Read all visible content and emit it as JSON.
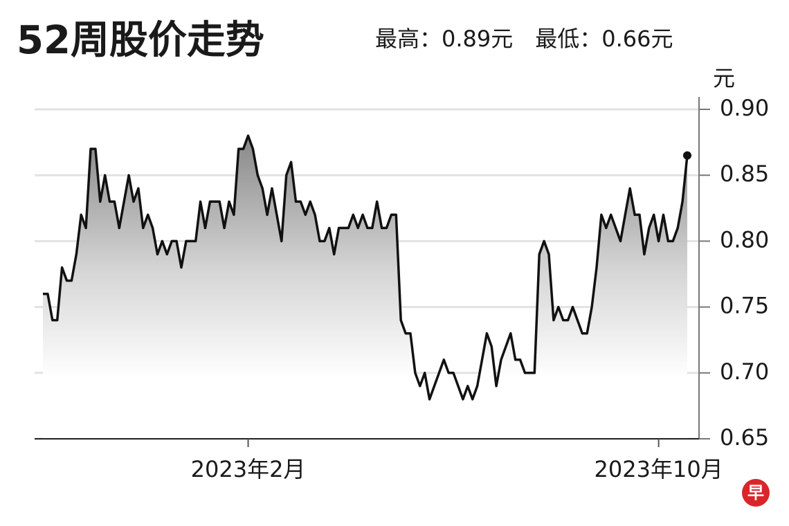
{
  "chart_data": {
    "type": "line",
    "title": "52周股价走势",
    "subtitle": "最高：0.89元　最低：0.66元",
    "y_label": "元",
    "logo": "早",
    "color": "#111111",
    "grid": true,
    "end_marker": true,
    "categories": [
      null,
      null,
      null,
      null,
      null,
      null,
      null,
      null,
      null,
      null,
      null,
      null,
      null,
      null,
      null,
      null,
      null,
      null,
      null,
      null,
      null,
      null,
      null,
      null,
      null,
      null,
      null,
      null,
      null,
      null,
      null,
      null,
      null,
      null,
      null,
      null,
      null,
      null,
      null,
      null,
      null,
      null,
      null,
      "2023年2月",
      null,
      null,
      null,
      null,
      null,
      null,
      null,
      null,
      null,
      null,
      null,
      null,
      null,
      null,
      null,
      null,
      null,
      null,
      null,
      null,
      null,
      null,
      null,
      null,
      null,
      null,
      null,
      null,
      null,
      null,
      null,
      null,
      null,
      null,
      null,
      null,
      null,
      null,
      null,
      null,
      null,
      null,
      null,
      null,
      null,
      null,
      null,
      null,
      null,
      null,
      null,
      null,
      null,
      null,
      null,
      null,
      null,
      null,
      null,
      null,
      null,
      null,
      null,
      null,
      null,
      null,
      null,
      null,
      null,
      null,
      null,
      null,
      null,
      null,
      null,
      null,
      null,
      null,
      null,
      null,
      null,
      null,
      null,
      null,
      null,
      "2023年10月",
      null,
      null,
      null,
      null,
      null,
      null
    ],
    "values": [
      0.76,
      0.76,
      0.74,
      0.74,
      0.78,
      0.77,
      0.77,
      0.79,
      0.82,
      0.81,
      0.87,
      0.87,
      0.83,
      0.85,
      0.83,
      0.83,
      0.81,
      0.83,
      0.85,
      0.83,
      0.84,
      0.81,
      0.82,
      0.81,
      0.79,
      0.8,
      0.79,
      0.8,
      0.8,
      0.78,
      0.8,
      0.8,
      0.8,
      0.83,
      0.81,
      0.83,
      0.83,
      0.83,
      0.81,
      0.83,
      0.82,
      0.87,
      0.87,
      0.88,
      0.87,
      0.85,
      0.84,
      0.82,
      0.84,
      0.82,
      0.8,
      0.85,
      0.86,
      0.83,
      0.83,
      0.82,
      0.83,
      0.82,
      0.8,
      0.8,
      0.81,
      0.79,
      0.81,
      0.81,
      0.81,
      0.82,
      0.81,
      0.82,
      0.81,
      0.81,
      0.83,
      0.81,
      0.81,
      0.82,
      0.82,
      0.74,
      0.73,
      0.73,
      0.7,
      0.69,
      0.7,
      0.68,
      0.69,
      0.7,
      0.71,
      0.7,
      0.7,
      0.69,
      0.68,
      0.69,
      0.68,
      0.69,
      0.71,
      0.73,
      0.72,
      0.69,
      0.71,
      0.72,
      0.73,
      0.71,
      0.71,
      0.7,
      0.7,
      0.7,
      0.79,
      0.8,
      0.79,
      0.74,
      0.75,
      0.74,
      0.74,
      0.75,
      0.74,
      0.73,
      0.73,
      0.75,
      0.78,
      0.82,
      0.81,
      0.82,
      0.81,
      0.8,
      0.82,
      0.84,
      0.82,
      0.82,
      0.79,
      0.81,
      0.82,
      0.8,
      0.82,
      0.8,
      0.8,
      0.81,
      0.83,
      0.865
    ],
    "ylim": [
      0.65,
      0.9
    ],
    "yticks": [
      0.65,
      {
        "value": 0.7,
        "label": "0.70"
      },
      0.75,
      {
        "value": 0.8,
        "label": "0.80"
      },
      0.85,
      {
        "value": 0.9,
        "label": "0.90"
      }
    ]
  }
}
